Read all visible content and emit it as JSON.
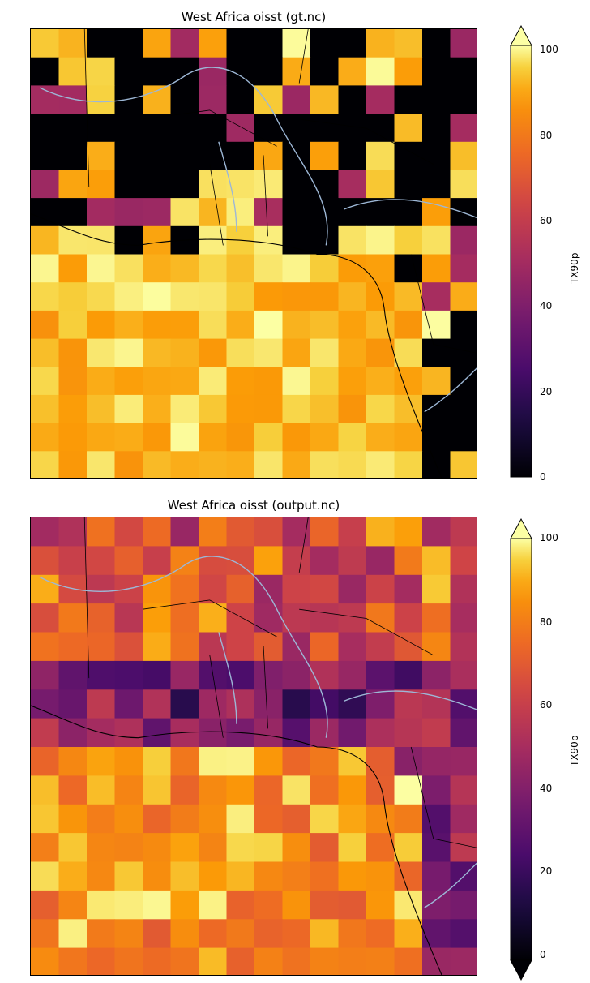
{
  "panels": [
    {
      "title": "West Africa oisst (gt.nc)",
      "colorbar": {
        "label": "TX90p",
        "ticks": [
          "0",
          "20",
          "40",
          "60",
          "80",
          "100"
        ],
        "extend": "max"
      }
    },
    {
      "title": "West Africa oisst (output.nc)",
      "colorbar": {
        "label": "TX90p",
        "ticks": [
          "0",
          "20",
          "40",
          "60",
          "80",
          "100"
        ],
        "extend": "both"
      }
    }
  ],
  "colors": {
    "coast": "#000000",
    "rivers": "#9db7d6",
    "colormap": "inferno"
  }
}
